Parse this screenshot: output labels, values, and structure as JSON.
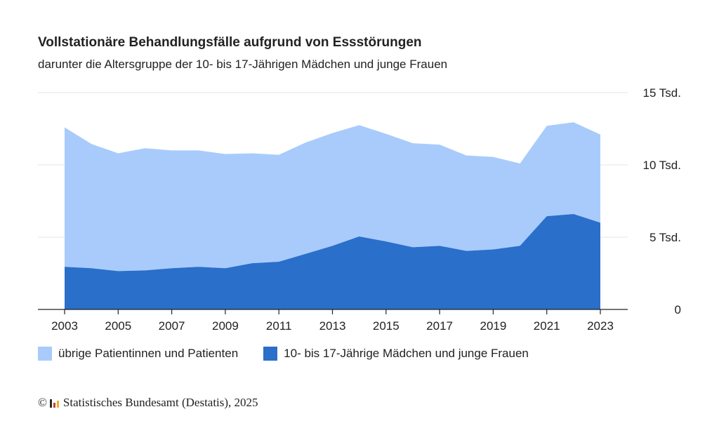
{
  "header": {
    "title": "Vollstationäre Behandlungsfälle aufgrund von Essstörungen",
    "subtitle": "darunter die Altersgruppe der 10- bis 17-Jährigen Mädchen und junge Frauen"
  },
  "legend": {
    "items": [
      {
        "label": "übrige Patientinnen und Patienten",
        "color": "#a8cbfc"
      },
      {
        "label": "10- bis 17-Jährige Mädchen und junge Frauen",
        "color": "#2a6fc9"
      }
    ]
  },
  "footer": {
    "copyright_symbol": "©",
    "text": "Statistisches Bundesamt (Destatis), 2025"
  },
  "colors": {
    "gridline": "#e6e6e6",
    "axis": "#222222",
    "logo_bars": [
      "#2a2a2a",
      "#d43b2a",
      "#e8b32a"
    ]
  },
  "chart_data": {
    "type": "area",
    "stacked": true,
    "x": [
      2003,
      2004,
      2005,
      2006,
      2007,
      2008,
      2009,
      2010,
      2011,
      2012,
      2013,
      2014,
      2015,
      2016,
      2017,
      2018,
      2019,
      2020,
      2021,
      2022,
      2023
    ],
    "xticks": [
      "2003",
      "2005",
      "2007",
      "2009",
      "2011",
      "2013",
      "2015",
      "2017",
      "2019",
      "2021",
      "2023"
    ],
    "yticks": [
      {
        "value": 0,
        "label": "0"
      },
      {
        "value": 5000,
        "label": "5 Tsd."
      },
      {
        "value": 10000,
        "label": "10 Tsd."
      },
      {
        "value": 15000,
        "label": "15 Tsd."
      }
    ],
    "ylim": [
      0,
      15000
    ],
    "grid": true,
    "legend_position": "bottom",
    "series": [
      {
        "name": "10- bis 17-Jährige Mädchen und junge Frauen",
        "color": "#2a6fc9",
        "values": [
          2950,
          2850,
          2650,
          2700,
          2850,
          2950,
          2850,
          3200,
          3300,
          3850,
          4400,
          5050,
          4700,
          4300,
          4400,
          4050,
          4150,
          4400,
          6450,
          6600,
          6000
        ]
      },
      {
        "name": "übrige Patientinnen und Patienten",
        "color": "#a8cbfc",
        "values": [
          9650,
          8600,
          8150,
          8450,
          8150,
          8050,
          7900,
          7600,
          7400,
          7700,
          7800,
          7700,
          7450,
          7200,
          7000,
          6600,
          6400,
          5700,
          6250,
          6350,
          6100
        ]
      }
    ]
  }
}
